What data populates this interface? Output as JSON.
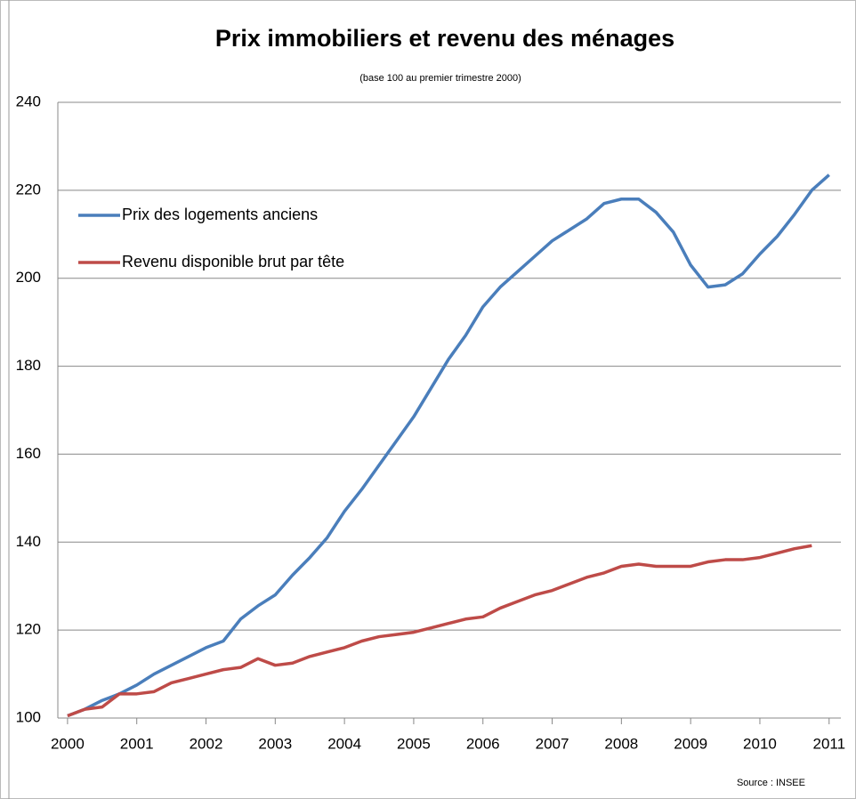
{
  "chart_data": {
    "type": "line",
    "title": "Prix immobiliers et revenu des ménages",
    "subtitle": "(base 100 au premier trimestre 2000)",
    "source": "Source : INSEE",
    "x": [
      2000,
      2000.25,
      2000.5,
      2000.75,
      2001,
      2001.25,
      2001.5,
      2001.75,
      2002,
      2002.25,
      2002.5,
      2002.75,
      2003,
      2003.25,
      2003.5,
      2003.75,
      2004,
      2004.25,
      2004.5,
      2004.75,
      2005,
      2005.25,
      2005.5,
      2005.75,
      2006,
      2006.25,
      2006.5,
      2006.75,
      2007,
      2007.25,
      2007.5,
      2007.75,
      2008,
      2008.25,
      2008.5,
      2008.75,
      2009,
      2009.25,
      2009.5,
      2009.75,
      2010,
      2010.25,
      2010.5,
      2010.75,
      2011
    ],
    "series": [
      {
        "name": "Prix des logements anciens",
        "color": "#4a7ebb",
        "values": [
          100.5,
          102,
          104,
          105.5,
          107.5,
          110,
          112,
          114,
          116,
          117.5,
          122.5,
          125.5,
          128,
          132.5,
          136.5,
          141,
          147,
          152,
          157.5,
          163,
          168.5,
          175,
          181.5,
          187,
          193.5,
          198,
          201.5,
          205,
          208.5,
          211,
          213.5,
          217,
          218,
          218,
          215,
          210.5,
          203,
          198,
          198.5,
          201,
          205.5,
          209.5,
          214.5,
          220,
          223.5
        ]
      },
      {
        "name": "Revenu disponible brut par tête",
        "color": "#be4b48",
        "values": [
          100.5,
          102,
          102.5,
          105.5,
          105.5,
          106,
          108,
          109,
          110,
          111,
          111.5,
          113.5,
          112,
          112.5,
          114,
          115,
          116,
          117.5,
          118.5,
          119,
          119.5,
          120.5,
          121.5,
          122.5,
          123,
          125,
          126.5,
          128,
          129,
          130.5,
          132,
          133,
          134.5,
          135,
          134.5,
          134.5,
          134.5,
          135.5,
          136,
          136,
          136.5,
          137.5,
          138.5,
          139.2,
          null
        ]
      }
    ],
    "xlim": [
      1999.86,
      2011.17
    ],
    "xticks": [
      2000,
      2001,
      2002,
      2003,
      2004,
      2005,
      2006,
      2007,
      2008,
      2009,
      2010,
      2011
    ],
    "ylim": [
      100,
      240
    ],
    "yticks": [
      100,
      120,
      140,
      160,
      180,
      200,
      220,
      240
    ],
    "grid": true,
    "legend": "upper left"
  }
}
